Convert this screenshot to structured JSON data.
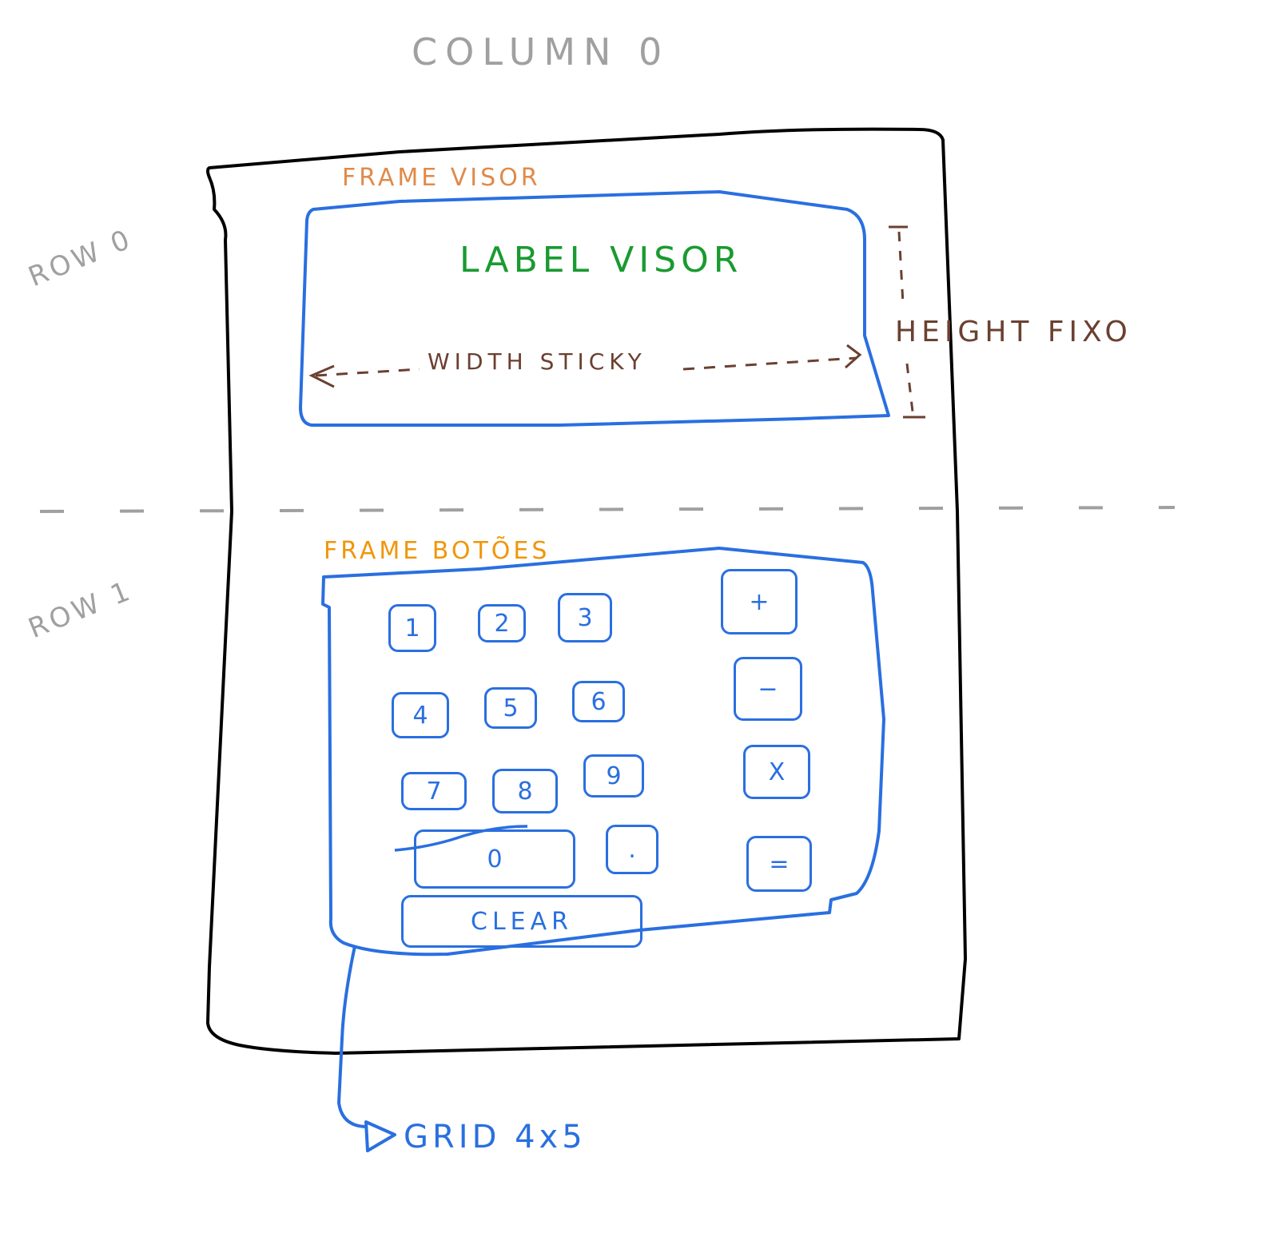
{
  "title": "COLUMN 0",
  "rows": {
    "row0": "ROW 0",
    "row1": "ROW 1"
  },
  "visor": {
    "frame_label": "FRAME VISOR",
    "label": "LABEL VISOR",
    "width_note": "WIDTH STICKY",
    "height_note": "HEIGHT FIXO"
  },
  "buttons": {
    "frame_label": "FRAME BOTÕES",
    "grid_note": "GRID 4x5",
    "keys": {
      "k1": "1",
      "k2": "2",
      "k3": "3",
      "k4": "4",
      "k5": "5",
      "k6": "6",
      "k7": "7",
      "k8": "8",
      "k9": "9",
      "k0": "0",
      "kdot": ".",
      "plus": "+",
      "minus": "−",
      "times": "X",
      "equals": "=",
      "clear": "CLEAR"
    }
  },
  "colors": {
    "outline": "#000000",
    "frame": "#2a6fe0",
    "frame_label": "#e08a4a",
    "label": "#1a9a30",
    "note": "#6b4030",
    "guide": "#a0a0a0"
  }
}
